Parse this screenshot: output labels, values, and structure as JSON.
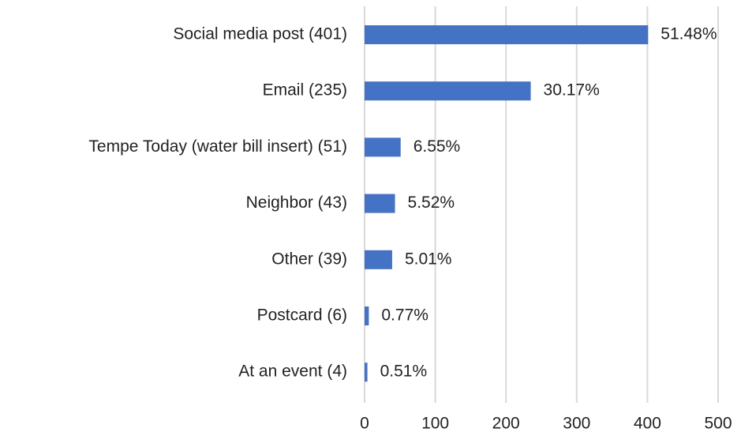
{
  "chart_data": {
    "type": "hbar",
    "categories": [
      "Social media post (401)",
      "Email (235)",
      "Tempe Today (water bill insert) (51)",
      "Neighbor (43)",
      "Other (39)",
      "Postcard (6)",
      "At an event (4)"
    ],
    "values": [
      401,
      235,
      51,
      43,
      39,
      6,
      4
    ],
    "data_labels": [
      "51.48%",
      "30.17%",
      "6.55%",
      "5.52%",
      "5.01%",
      "0.77%",
      "0.51%"
    ],
    "color": "#4472c4",
    "xlim": [
      0,
      500
    ],
    "xticks": [
      0,
      100,
      200,
      300,
      400,
      500
    ],
    "grid": true
  }
}
